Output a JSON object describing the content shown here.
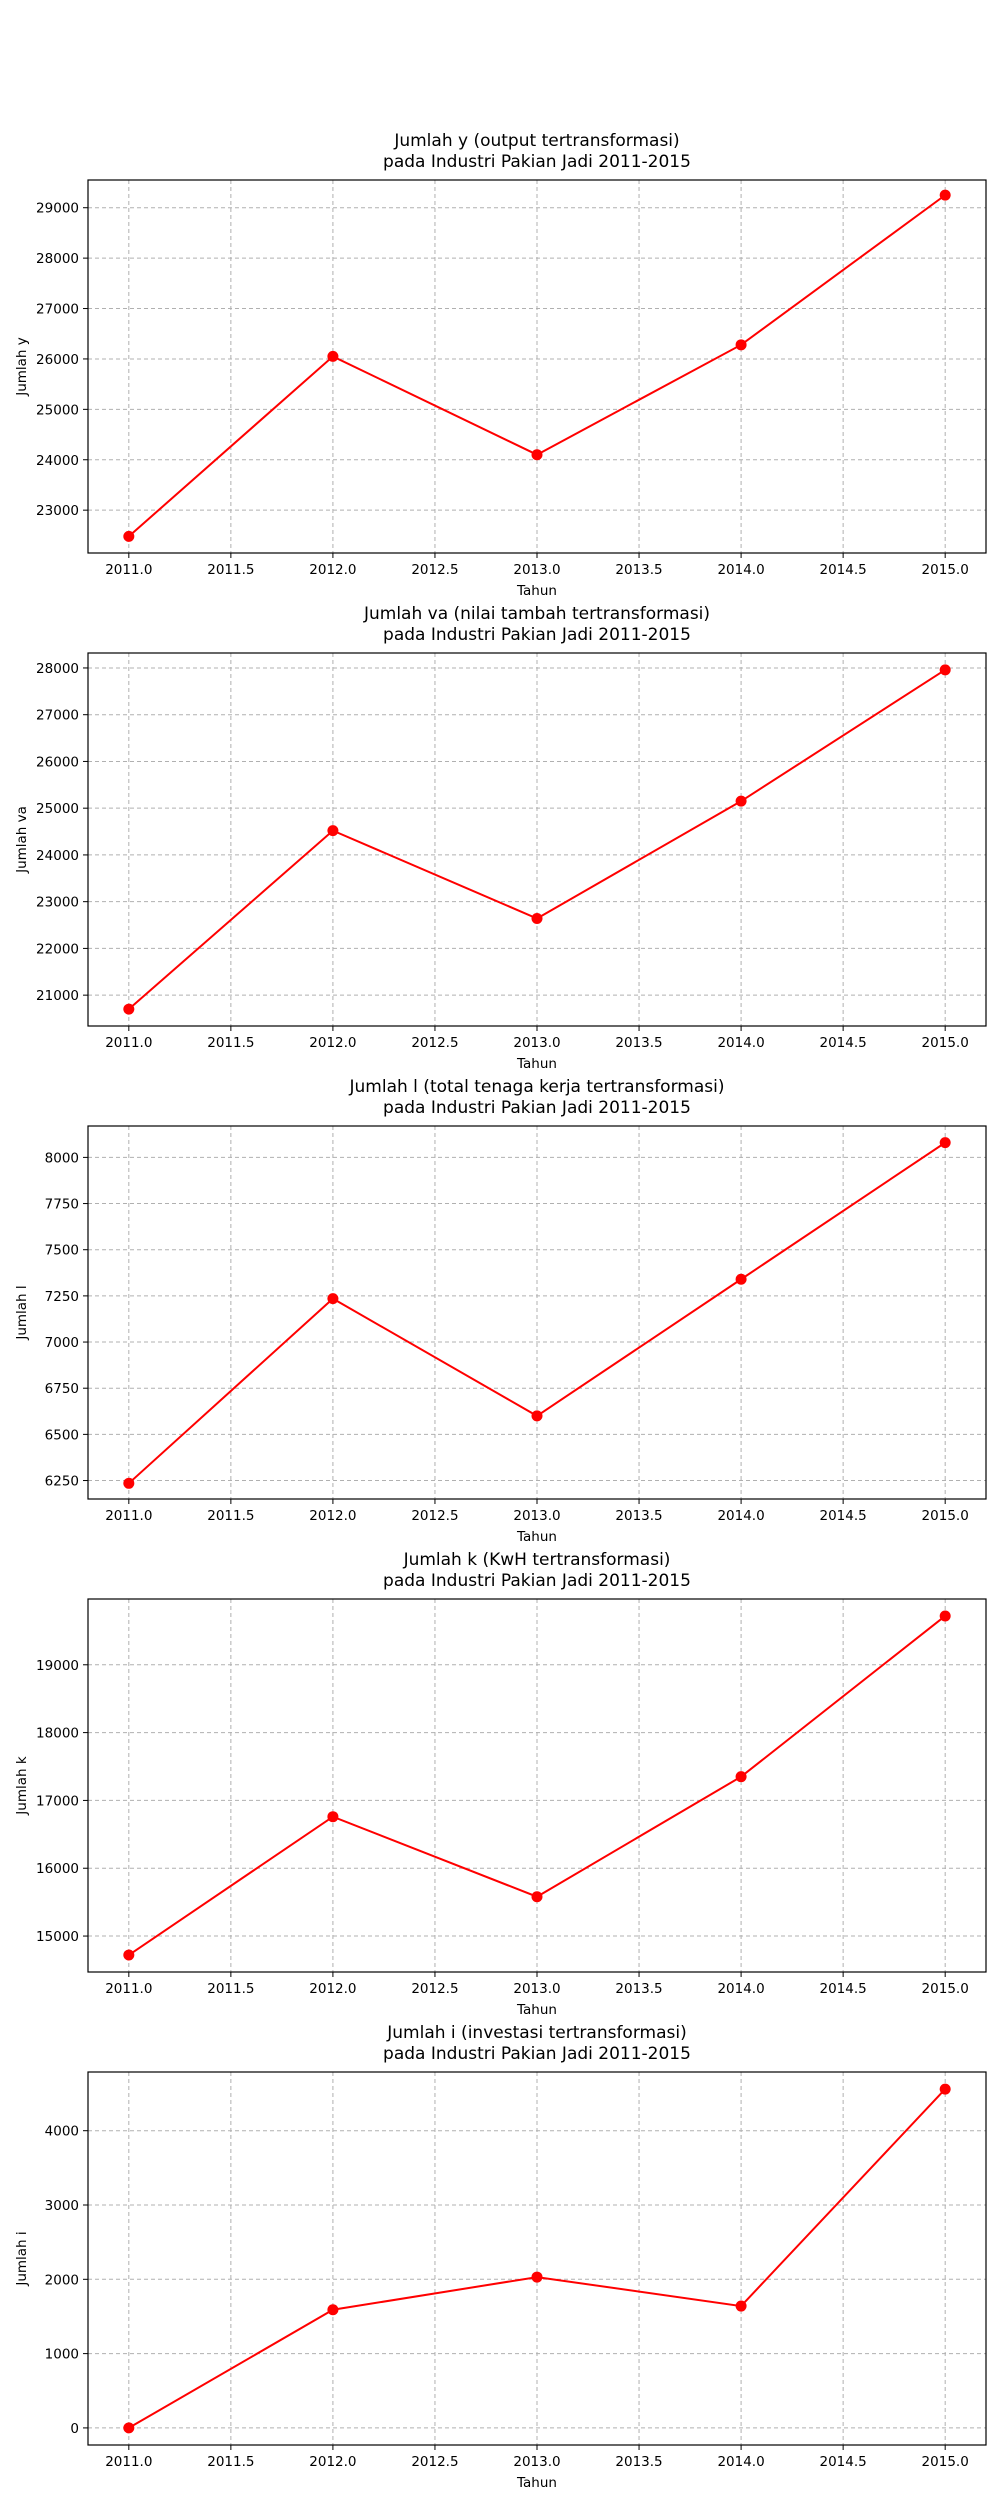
{
  "chart_data": [
    {
      "type": "line",
      "title": "Jumlah y (output tertransformasi)\npada Industri Pakian Jadi 2011-2015",
      "xlabel": "Tahun",
      "ylabel": "Jumlah y",
      "x": [
        2011,
        2012,
        2013,
        2014,
        2015
      ],
      "values": [
        22480,
        26050,
        24100,
        26280,
        29250
      ],
      "xlim": [
        2010.8,
        2015.2
      ],
      "ylim": [
        22150,
        29550
      ],
      "xticks": [
        2011.0,
        2011.5,
        2012.0,
        2012.5,
        2013.0,
        2013.5,
        2014.0,
        2014.5,
        2015.0
      ],
      "yticks": [
        23000,
        24000,
        25000,
        26000,
        27000,
        28000,
        29000
      ],
      "grid": true,
      "color": "#ff0000"
    },
    {
      "type": "line",
      "title": "Jumlah va (nilai tambah tertransformasi)\npada Industri Pakian Jadi 2011-2015",
      "xlabel": "Tahun",
      "ylabel": "Jumlah va",
      "x": [
        2011,
        2012,
        2013,
        2014,
        2015
      ],
      "values": [
        20700,
        24520,
        22640,
        25150,
        27960
      ],
      "xlim": [
        2010.8,
        2015.2
      ],
      "ylim": [
        20340,
        28320
      ],
      "xticks": [
        2011.0,
        2011.5,
        2012.0,
        2012.5,
        2013.0,
        2013.5,
        2014.0,
        2014.5,
        2015.0
      ],
      "yticks": [
        21000,
        22000,
        23000,
        24000,
        25000,
        26000,
        27000,
        28000
      ],
      "grid": true,
      "color": "#ff0000"
    },
    {
      "type": "line",
      "title": "Jumlah l (total tenaga kerja tertransformasi)\npada Industri Pakian Jadi 2011-2015",
      "xlabel": "Tahun",
      "ylabel": "Jumlah l",
      "x": [
        2011,
        2012,
        2013,
        2014,
        2015
      ],
      "values": [
        6235,
        7235,
        6600,
        7340,
        8080
      ],
      "xlim": [
        2010.8,
        2015.2
      ],
      "ylim": [
        6150,
        8170
      ],
      "xticks": [
        2011.0,
        2011.5,
        2012.0,
        2012.5,
        2013.0,
        2013.5,
        2014.0,
        2014.5,
        2015.0
      ],
      "yticks": [
        6250,
        6500,
        6750,
        7000,
        7250,
        7500,
        7750,
        8000
      ],
      "grid": true,
      "color": "#ff0000"
    },
    {
      "type": "line",
      "title": "Jumlah k (KwH tertransformasi)\npada Industri Pakian Jadi 2011-2015",
      "xlabel": "Tahun",
      "ylabel": "Jumlah k",
      "x": [
        2011,
        2012,
        2013,
        2014,
        2015
      ],
      "values": [
        14720,
        16760,
        15580,
        17350,
        19720
      ],
      "xlim": [
        2010.8,
        2015.2
      ],
      "ylim": [
        14470,
        19970
      ],
      "xticks": [
        2011.0,
        2011.5,
        2012.0,
        2012.5,
        2013.0,
        2013.5,
        2014.0,
        2014.5,
        2015.0
      ],
      "yticks": [
        15000,
        16000,
        17000,
        18000,
        19000
      ],
      "grid": true,
      "color": "#ff0000"
    },
    {
      "type": "line",
      "title": "Jumlah i (investasi tertransformasi)\npada Industri Pakian Jadi 2011-2015",
      "xlabel": "Tahun",
      "ylabel": "Jumlah i",
      "x": [
        2011,
        2012,
        2013,
        2014,
        2015
      ],
      "values": [
        0,
        1590,
        2030,
        1640,
        4560
      ],
      "xlim": [
        2010.8,
        2015.2
      ],
      "ylim": [
        -230,
        4790
      ],
      "xticks": [
        2011.0,
        2011.5,
        2012.0,
        2012.5,
        2013.0,
        2013.5,
        2014.0,
        2014.5,
        2015.0
      ],
      "yticks": [
        0,
        1000,
        2000,
        3000,
        4000
      ],
      "grid": true,
      "color": "#ff0000"
    }
  ]
}
